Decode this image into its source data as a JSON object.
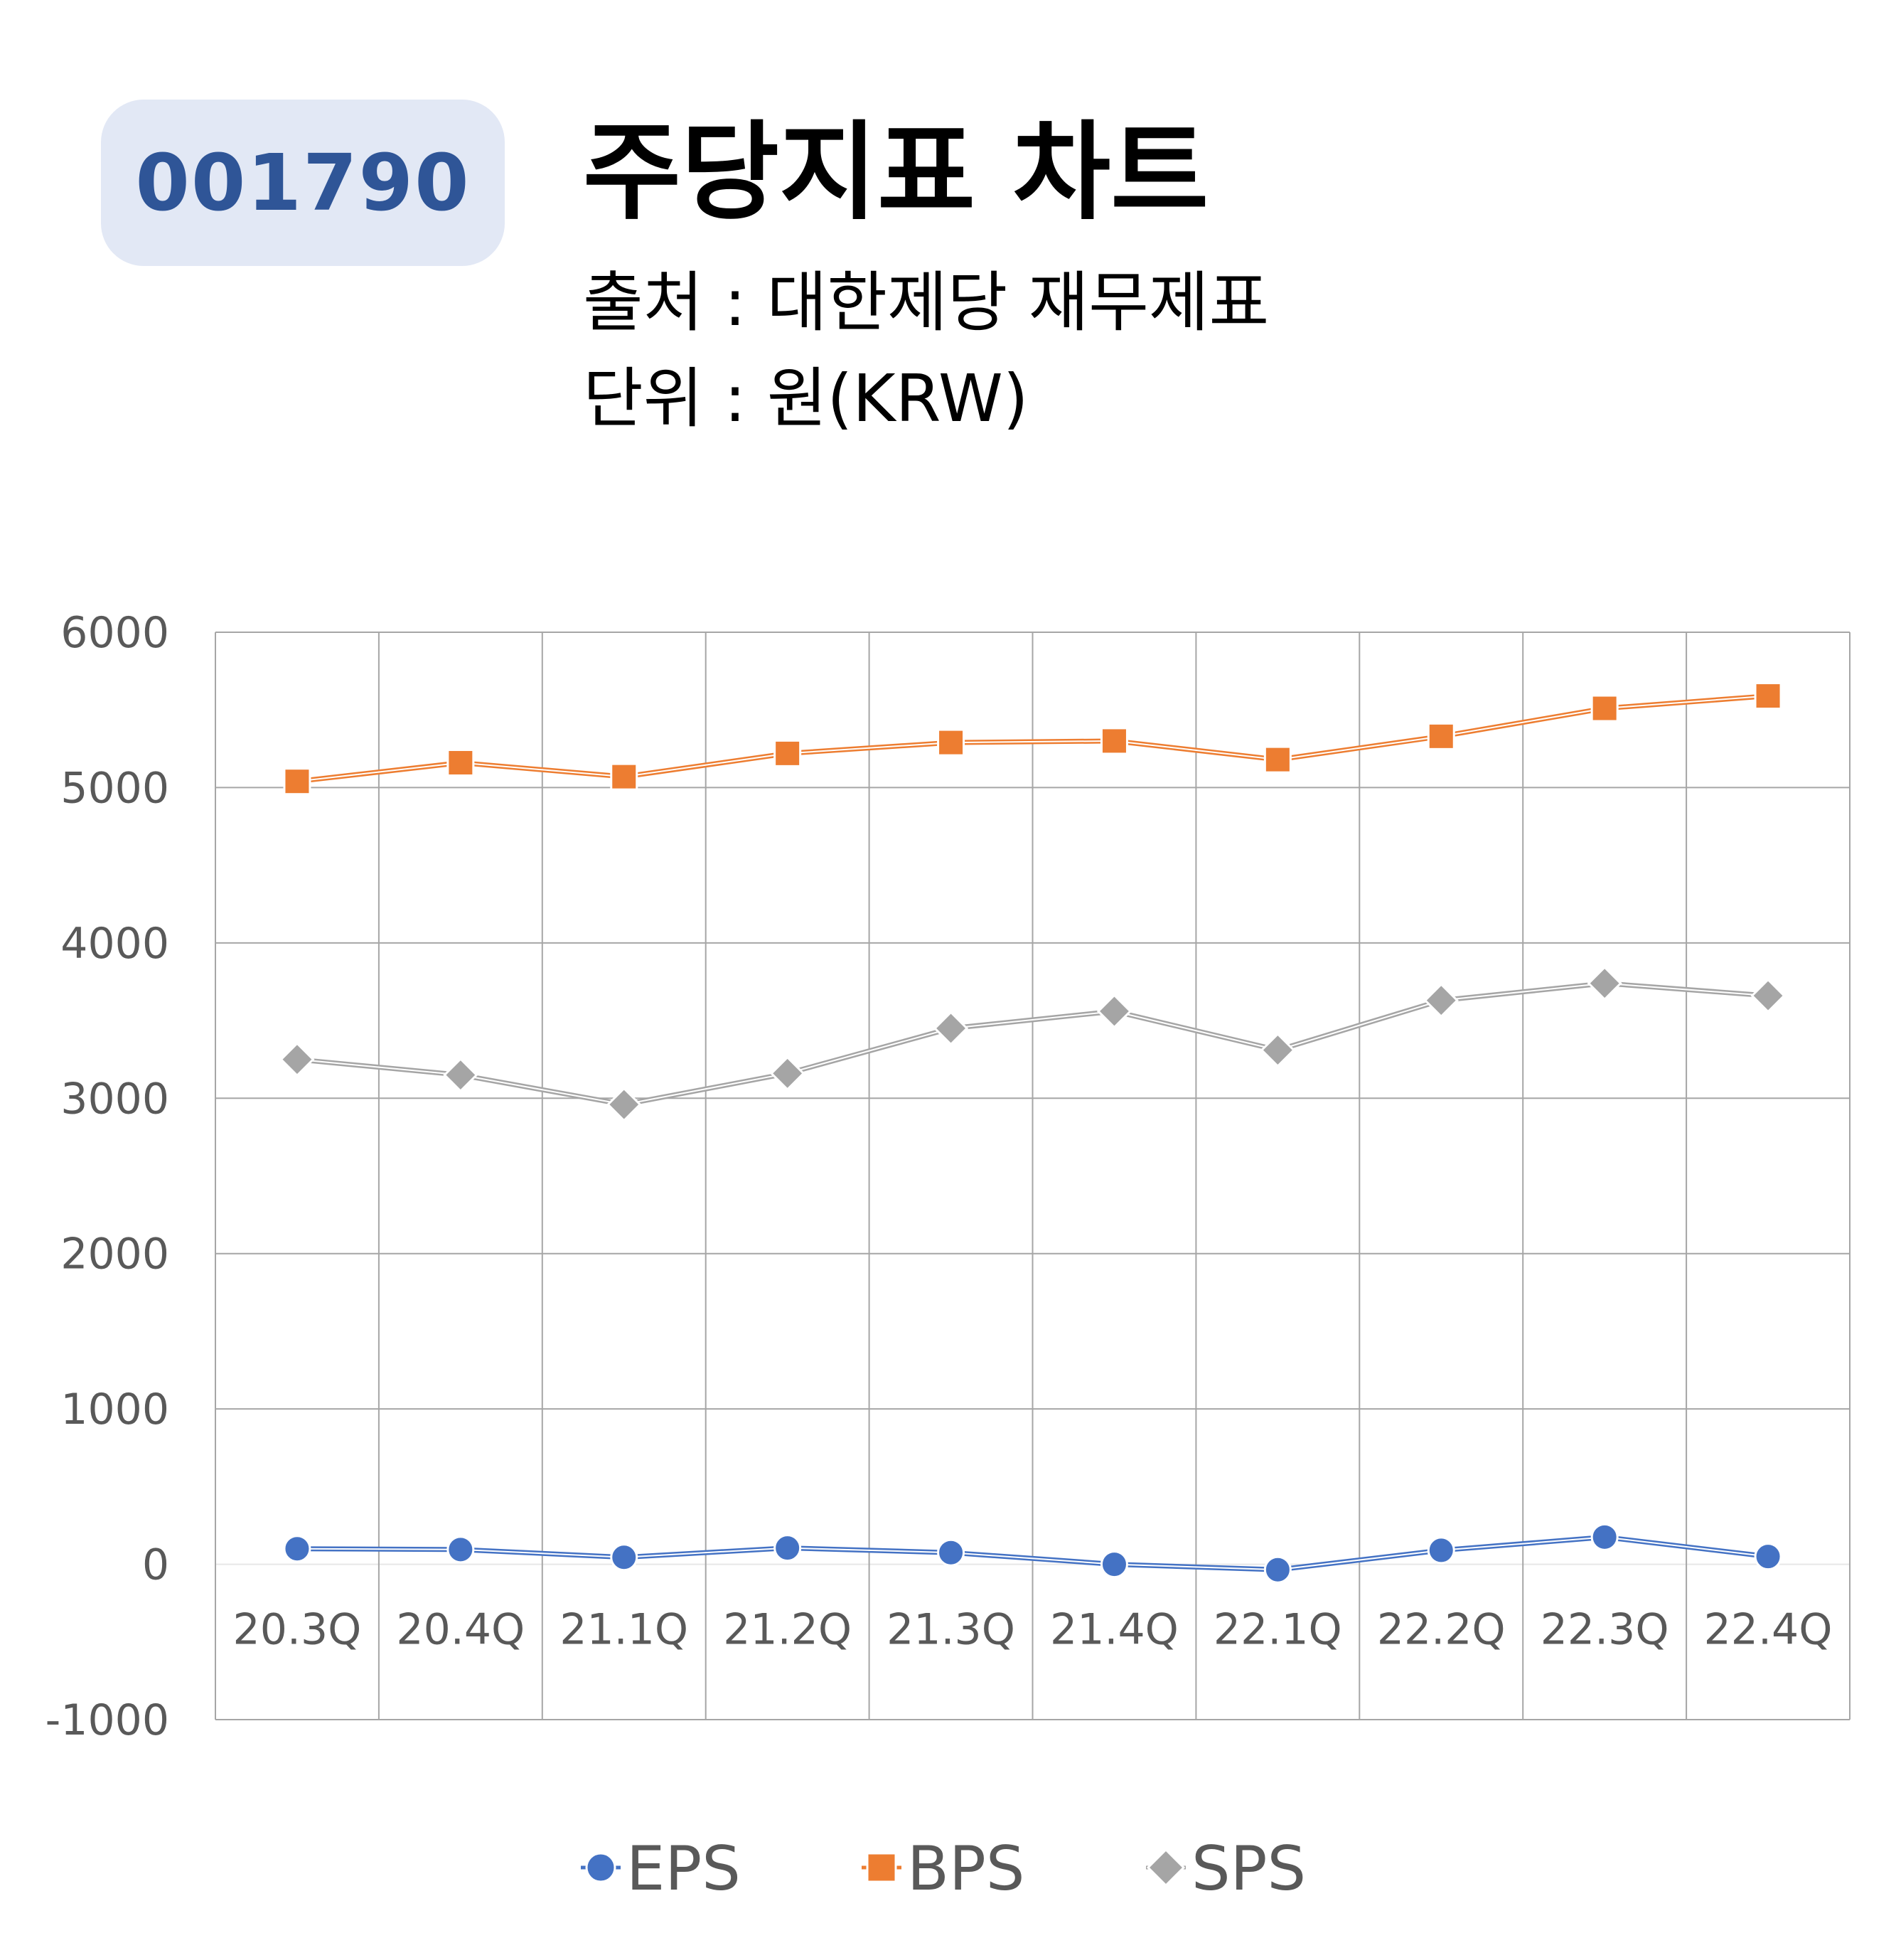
{
  "header": {
    "ticker": "001790",
    "title": "주당지표 차트",
    "source": "출처 : 대한제당 재무제표",
    "unit": "단위 : 원(KRW)"
  },
  "chart_data": {
    "type": "line",
    "title": "주당지표 차트",
    "xlabel": "",
    "ylabel": "",
    "categories": [
      "20.3Q",
      "20.4Q",
      "21.1Q",
      "21.2Q",
      "21.3Q",
      "21.4Q",
      "22.1Q",
      "22.2Q",
      "22.3Q",
      "22.4Q"
    ],
    "ylim": [
      -1000,
      6000
    ],
    "yticks": [
      -1000,
      0,
      1000,
      2000,
      3000,
      4000,
      5000,
      6000
    ],
    "grid": true,
    "legend_position": "bottom",
    "series": [
      {
        "name": "EPS",
        "color": "#4472c4",
        "marker": "circle",
        "values": [
          100,
          95,
          45,
          105,
          75,
          0,
          -35,
          90,
          175,
          50
        ]
      },
      {
        "name": "BPS",
        "color": "#ed7d31",
        "marker": "square",
        "values": [
          5040,
          5160,
          5070,
          5220,
          5290,
          5300,
          5180,
          5330,
          5510,
          5590
        ]
      },
      {
        "name": "SPS",
        "color": "#a5a5a5",
        "marker": "diamond",
        "values": [
          3250,
          3150,
          2960,
          3160,
          3450,
          3560,
          3310,
          3630,
          3740,
          3660
        ]
      }
    ]
  }
}
